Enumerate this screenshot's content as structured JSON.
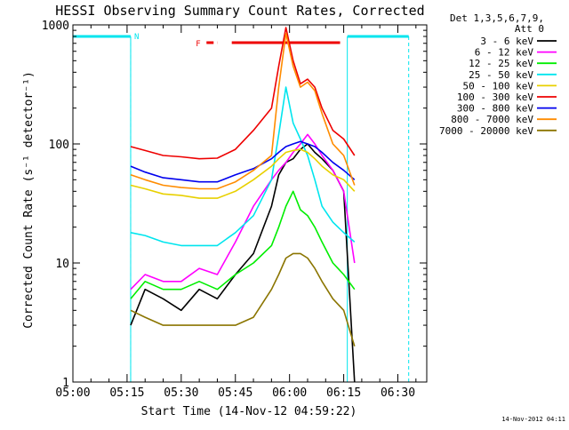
{
  "chart_data": {
    "type": "line",
    "title": "HESSI Observing Summary Count Rates, Corrected",
    "xlabel": "Start Time (14-Nov-12 04:59:22)",
    "ylabel": "Corrected Count Rate (s⁻¹ detector⁻¹)",
    "xscale": "time",
    "yscale": "log",
    "xlim": [
      "05:00",
      "06:38"
    ],
    "ylim": [
      1,
      1000
    ],
    "x_ticks": [
      "05:00",
      "05:15",
      "05:30",
      "05:45",
      "06:00",
      "06:15",
      "06:30"
    ],
    "y_ticks": [
      "1",
      "10",
      "100",
      "1000"
    ],
    "legend_title": [
      "Det 1,3,5,6,7,9,",
      "Att 0"
    ],
    "legend_position": "right",
    "timestamp": "14-Nov-2012 04:11",
    "annotations": {
      "night_label": "N",
      "flare_label": "F",
      "night_intervals": [
        [
          "05:00",
          "05:16"
        ],
        [
          "06:16",
          "06:33"
        ]
      ],
      "flare_intervals": [
        [
          "05:37",
          "05:40"
        ],
        [
          "05:44",
          "06:14"
        ]
      ],
      "saa_markers": [
        "05:16",
        "06:16"
      ]
    },
    "x": [
      "05:16",
      "05:20",
      "05:25",
      "05:30",
      "05:35",
      "05:40",
      "05:45",
      "05:50",
      "05:55",
      "05:57",
      "05:59",
      "06:01",
      "06:03",
      "06:05",
      "06:07",
      "06:09",
      "06:12",
      "06:15",
      "06:18"
    ],
    "series": [
      {
        "name": "3 - 6 keV",
        "color": "#000000",
        "values": [
          3,
          6,
          5,
          4,
          6,
          5,
          8,
          12,
          30,
          55,
          70,
          75,
          90,
          100,
          85,
          75,
          60,
          40,
          1
        ]
      },
      {
        "name": "6 - 12 keV",
        "color": "#ff00ff",
        "values": [
          6,
          8,
          7,
          7,
          9,
          8,
          15,
          30,
          50,
          60,
          70,
          85,
          100,
          120,
          100,
          80,
          60,
          40,
          10
        ]
      },
      {
        "name": "12 - 25 keV",
        "color": "#00ee00",
        "values": [
          5,
          7,
          6,
          6,
          7,
          6,
          8,
          10,
          14,
          20,
          30,
          40,
          28,
          25,
          20,
          15,
          10,
          8,
          6
        ]
      },
      {
        "name": "25 - 50 keV",
        "color": "#00e5ee",
        "values": [
          18,
          17,
          15,
          14,
          14,
          14,
          18,
          25,
          50,
          120,
          300,
          150,
          110,
          80,
          50,
          30,
          22,
          18,
          15
        ]
      },
      {
        "name": "50 - 100 keV",
        "color": "#e8d000",
        "values": [
          45,
          42,
          38,
          37,
          35,
          35,
          40,
          50,
          65,
          75,
          85,
          88,
          90,
          85,
          75,
          65,
          55,
          50,
          40
        ]
      },
      {
        "name": "100 - 300 keV",
        "color": "#ee0000",
        "values": [
          95,
          88,
          80,
          78,
          75,
          76,
          90,
          130,
          200,
          450,
          950,
          500,
          320,
          350,
          300,
          200,
          130,
          110,
          80
        ]
      },
      {
        "name": "300 - 800 keV",
        "color": "#0000ee",
        "values": [
          65,
          58,
          52,
          50,
          48,
          48,
          55,
          62,
          75,
          85,
          95,
          100,
          105,
          100,
          95,
          85,
          70,
          60,
          50
        ]
      },
      {
        "name": "800 - 7000 keV",
        "color": "#ff8c00",
        "values": [
          55,
          50,
          45,
          43,
          42,
          42,
          48,
          60,
          80,
          300,
          850,
          450,
          300,
          330,
          280,
          180,
          100,
          80,
          45
        ]
      },
      {
        "name": "7000 - 20000 keV",
        "color": "#8b7500",
        "values": [
          4,
          3.5,
          3,
          3,
          3,
          3,
          3,
          3.5,
          6,
          8,
          11,
          12,
          12,
          11,
          9,
          7,
          5,
          4,
          2
        ]
      }
    ]
  }
}
